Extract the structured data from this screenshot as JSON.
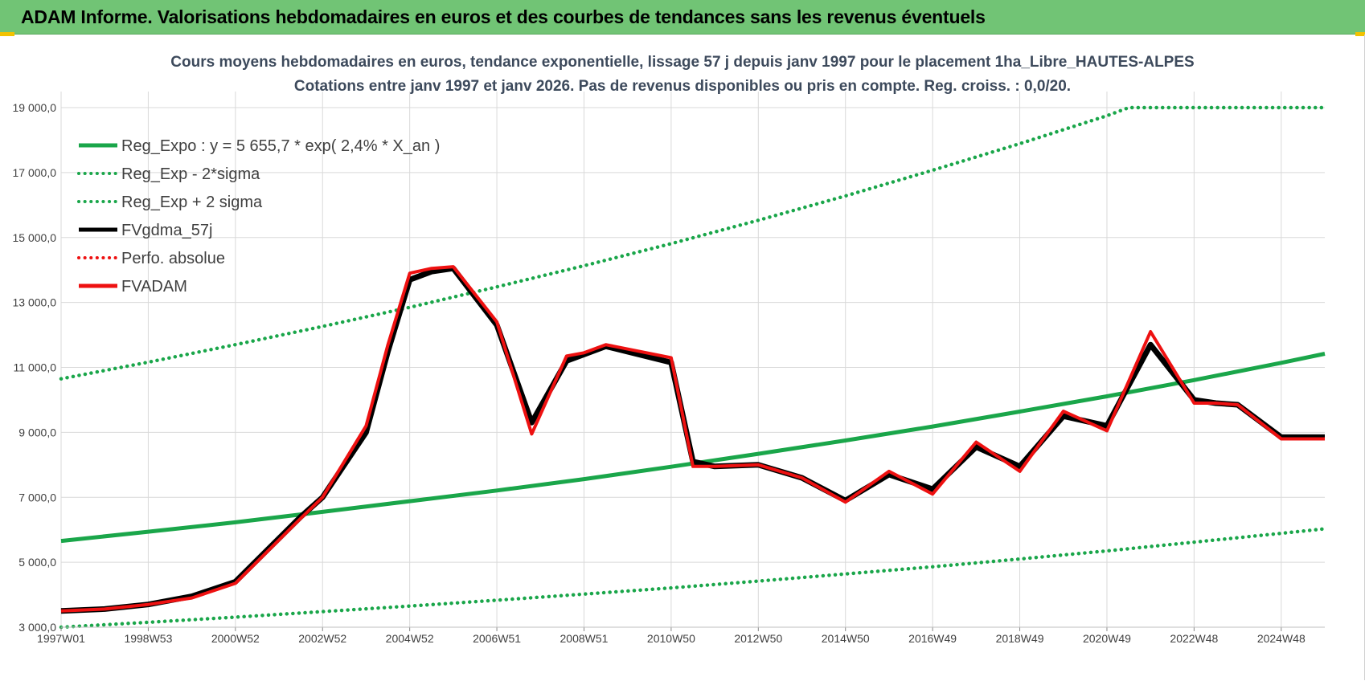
{
  "header": {
    "title": "ADAM Informe. Valorisations hebdomadaires en euros et des courbes de tendances sans les revenus éventuels"
  },
  "colors": {
    "header_bg": "#71c475",
    "reg_green": "#1aa64a",
    "fv_black": "#000000",
    "fv_red": "#ee1111",
    "grid": "#d9d9d9"
  },
  "chart_data": {
    "type": "line",
    "title": "Cours moyens hebdomadaires en euros, tendance exponentielle, lissage 57 j depuis janv 1997 pour le placement 1ha_Libre_HAUTES-ALPES",
    "subtitle": "Cotations entre janv 1997 et janv 2026. Pas de revenus disponibles ou pris  en compte. Reg. croiss. : 0,0/20.",
    "xlabel": "",
    "ylabel": "",
    "xlim": [
      1997.0,
      2026.0
    ],
    "ylim": [
      3000,
      19000
    ],
    "yticks": [
      {
        "value": 3000,
        "label": "3 000,0"
      },
      {
        "value": 5000,
        "label": "5 000,0"
      },
      {
        "value": 7000,
        "label": "7 000,0"
      },
      {
        "value": 9000,
        "label": "9 000,0"
      },
      {
        "value": 11000,
        "label": "11 000,0"
      },
      {
        "value": 13000,
        "label": "13 000,0"
      },
      {
        "value": 15000,
        "label": "15 000,0"
      },
      {
        "value": 17000,
        "label": "17 000,0"
      },
      {
        "value": 19000,
        "label": "19 000,0"
      }
    ],
    "xticks": [
      {
        "value": 1997.0,
        "label": "1997W01"
      },
      {
        "value": 1999.0,
        "label": "1998W53"
      },
      {
        "value": 2001.0,
        "label": "2000W52"
      },
      {
        "value": 2003.0,
        "label": "2002W52"
      },
      {
        "value": 2005.0,
        "label": "2004W52"
      },
      {
        "value": 2007.0,
        "label": "2006W51"
      },
      {
        "value": 2009.0,
        "label": "2008W51"
      },
      {
        "value": 2011.0,
        "label": "2010W50"
      },
      {
        "value": 2013.0,
        "label": "2012W50"
      },
      {
        "value": 2015.0,
        "label": "2014W50"
      },
      {
        "value": 2017.0,
        "label": "2016W49"
      },
      {
        "value": 2019.0,
        "label": "2018W49"
      },
      {
        "value": 2021.0,
        "label": "2020W49"
      },
      {
        "value": 2023.0,
        "label": "2022W48"
      },
      {
        "value": 2025.0,
        "label": "2024W48"
      }
    ],
    "series": [
      {
        "name": "Reg_Expo : y = 5 655,7 * exp( 2,4% *  X_an )",
        "style": "solid",
        "color": "#1aa64a",
        "x": [
          1997.0,
          1999.0,
          2001.0,
          2003.0,
          2005.0,
          2007.0,
          2009.0,
          2011.0,
          2013.0,
          2015.0,
          2017.0,
          2019.0,
          2021.0,
          2023.0,
          2025.0,
          2026.0
        ],
        "y": [
          5656,
          5940,
          6230,
          6550,
          6880,
          7210,
          7560,
          7940,
          8340,
          8750,
          9180,
          9640,
          10110,
          10610,
          11140,
          11420
        ]
      },
      {
        "name": "Reg_Exp - 2*sigma",
        "style": "dotted",
        "color": "#1aa64a",
        "x": [
          1997.0,
          1999.0,
          2001.0,
          2003.0,
          2005.0,
          2007.0,
          2009.0,
          2011.0,
          2013.0,
          2015.0,
          2017.0,
          2019.0,
          2021.0,
          2023.0,
          2025.0,
          2026.0
        ],
        "y": [
          3000,
          3150,
          3310,
          3480,
          3650,
          3830,
          4020,
          4210,
          4420,
          4640,
          4860,
          5100,
          5350,
          5620,
          5890,
          6030
        ]
      },
      {
        "name": "Reg_Exp + 2 sigma",
        "style": "dotted",
        "color": "#1aa64a",
        "x": [
          1997.0,
          1999.0,
          2001.0,
          2003.0,
          2005.0,
          2007.0,
          2009.0,
          2011.0,
          2013.0,
          2015.0,
          2017.0,
          2019.0,
          2021.0,
          2021.5,
          2023.0,
          2024.0,
          2025.0,
          2026.0
        ],
        "y": [
          10650,
          11160,
          11700,
          12260,
          12850,
          13480,
          14130,
          14810,
          15530,
          16280,
          17070,
          17890,
          18750,
          19000,
          19000,
          19000,
          19000,
          19000
        ]
      },
      {
        "name": "FVgdma_57j",
        "style": "solid",
        "color": "#000000",
        "x": [
          1997.0,
          1998.0,
          1999.0,
          2000.0,
          2001.0,
          2002.5,
          2003.0,
          2004.0,
          2004.5,
          2005.0,
          2005.5,
          2006.0,
          2007.0,
          2007.8,
          2008.6,
          2009.0,
          2009.5,
          2011.0,
          2011.5,
          2012.0,
          2013.0,
          2014.0,
          2015.0,
          2016.0,
          2017.0,
          2018.0,
          2019.0,
          2020.0,
          2021.0,
          2022.0,
          2023.0,
          2023.5,
          2024.0,
          2025.0,
          2025.8,
          2026.0
        ],
        "y": [
          3500,
          3560,
          3700,
          3950,
          4400,
          6400,
          7000,
          9000,
          11500,
          13700,
          13950,
          14050,
          12300,
          9300,
          11200,
          11400,
          11650,
          11150,
          8100,
          7950,
          8000,
          7600,
          6900,
          7700,
          7250,
          8550,
          7950,
          9500,
          9200,
          11700,
          10000,
          9900,
          9850,
          8850,
          8850,
          8850
        ]
      },
      {
        "name": "Perfo. absolue",
        "style": "dotted",
        "color": "#ee1111",
        "x": [],
        "y": []
      },
      {
        "name": "FVADAM",
        "style": "solid",
        "color": "#ee1111",
        "x": [
          1997.0,
          1998.0,
          1999.0,
          2000.0,
          2001.0,
          2002.5,
          2003.0,
          2004.0,
          2004.5,
          2005.0,
          2005.5,
          2006.0,
          2007.0,
          2007.8,
          2008.6,
          2009.0,
          2009.5,
          2011.0,
          2011.5,
          2012.0,
          2013.0,
          2014.0,
          2015.0,
          2016.0,
          2017.0,
          2018.0,
          2019.0,
          2020.0,
          2021.0,
          2022.0,
          2023.0,
          2023.5,
          2024.0,
          2025.0,
          2025.8,
          2026.0
        ],
        "y": [
          3500,
          3560,
          3700,
          3900,
          4350,
          6350,
          7000,
          9200,
          11700,
          13900,
          14050,
          14100,
          12400,
          8950,
          11350,
          11450,
          11700,
          11300,
          7950,
          7950,
          8000,
          7600,
          6850,
          7800,
          7100,
          8700,
          7800,
          9650,
          9050,
          12100,
          9900,
          9900,
          9850,
          8800,
          8800,
          8800
        ]
      }
    ],
    "legend_position": "top-left"
  }
}
